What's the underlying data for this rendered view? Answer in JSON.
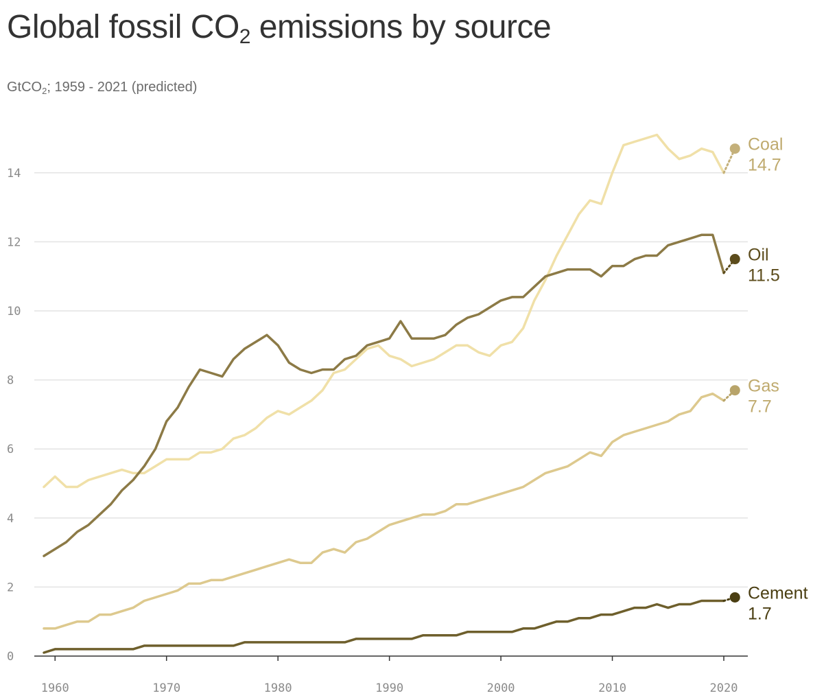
{
  "header": {
    "title_main": "Global fossil CO",
    "title_sub": "2",
    "title_end": " emissions by source",
    "subtitle_pre": "GtCO",
    "subtitle_sub": "2",
    "subtitle_post": "; 1959 - 2021 (predicted)"
  },
  "chart_data": {
    "type": "line",
    "title": "Global fossil CO2 emissions by source",
    "subtitle": "GtCO2; 1959 - 2021 (predicted)",
    "xlabel": "",
    "ylabel": "",
    "xlim": [
      1959,
      2021
    ],
    "ylim": [
      0,
      15
    ],
    "x_ticks": [
      1960,
      1970,
      1980,
      1990,
      2000,
      2010,
      2020
    ],
    "y_ticks": [
      0,
      2,
      4,
      6,
      8,
      10,
      12,
      14
    ],
    "grid": true,
    "x": [
      1959,
      1960,
      1961,
      1962,
      1963,
      1964,
      1965,
      1966,
      1967,
      1968,
      1969,
      1970,
      1971,
      1972,
      1973,
      1974,
      1975,
      1976,
      1977,
      1978,
      1979,
      1980,
      1981,
      1982,
      1983,
      1984,
      1985,
      1986,
      1987,
      1988,
      1989,
      1990,
      1991,
      1992,
      1993,
      1994,
      1995,
      1996,
      1997,
      1998,
      1999,
      2000,
      2001,
      2002,
      2003,
      2004,
      2005,
      2006,
      2007,
      2008,
      2009,
      2010,
      2011,
      2012,
      2013,
      2014,
      2015,
      2016,
      2017,
      2018,
      2019,
      2020
    ],
    "series": [
      {
        "name": "Coal",
        "color": "#f0e0a8",
        "label_color": "#bfaa6e",
        "dot_color": "#c4b07a",
        "values": [
          4.9,
          5.2,
          4.9,
          4.9,
          5.1,
          5.2,
          5.3,
          5.4,
          5.3,
          5.3,
          5.5,
          5.7,
          5.7,
          5.7,
          5.9,
          5.9,
          6.0,
          6.3,
          6.4,
          6.6,
          6.9,
          7.1,
          7.0,
          7.2,
          7.4,
          7.7,
          8.2,
          8.3,
          8.6,
          8.9,
          9.0,
          8.7,
          8.6,
          8.4,
          8.5,
          8.6,
          8.8,
          9.0,
          9.0,
          8.8,
          8.7,
          9.0,
          9.1,
          9.5,
          10.3,
          10.9,
          11.6,
          12.2,
          12.8,
          13.2,
          13.1,
          14.0,
          14.8,
          14.9,
          15.0,
          15.1,
          14.7,
          14.4,
          14.5,
          14.7,
          14.6,
          14.0
        ],
        "predicted": {
          "x": 2021,
          "value": 14.7,
          "label": "14.7"
        }
      },
      {
        "name": "Oil",
        "color": "#8c7a46",
        "label_color": "#5c4c1c",
        "dot_color": "#5c4c1c",
        "values": [
          2.9,
          3.1,
          3.3,
          3.6,
          3.8,
          4.1,
          4.4,
          4.8,
          5.1,
          5.5,
          6.0,
          6.8,
          7.2,
          7.8,
          8.3,
          8.2,
          8.1,
          8.6,
          8.9,
          9.1,
          9.3,
          9.0,
          8.5,
          8.3,
          8.2,
          8.3,
          8.3,
          8.6,
          8.7,
          9.0,
          9.1,
          9.2,
          9.7,
          9.2,
          9.2,
          9.2,
          9.3,
          9.6,
          9.8,
          9.9,
          10.1,
          10.3,
          10.4,
          10.4,
          10.7,
          11.0,
          11.1,
          11.2,
          11.2,
          11.2,
          11.0,
          11.3,
          11.3,
          11.5,
          11.6,
          11.6,
          11.9,
          12.0,
          12.1,
          12.2,
          12.2,
          11.1
        ],
        "predicted": {
          "x": 2021,
          "value": 11.5,
          "label": "11.5"
        }
      },
      {
        "name": "Gas",
        "color": "#ddc98e",
        "label_color": "#bfaa6e",
        "dot_color": "#b8a46a",
        "values": [
          0.8,
          0.8,
          0.9,
          1.0,
          1.0,
          1.2,
          1.2,
          1.3,
          1.4,
          1.6,
          1.7,
          1.8,
          1.9,
          2.1,
          2.1,
          2.2,
          2.2,
          2.3,
          2.4,
          2.5,
          2.6,
          2.7,
          2.8,
          2.7,
          2.7,
          3.0,
          3.1,
          3.0,
          3.3,
          3.4,
          3.6,
          3.8,
          3.9,
          4.0,
          4.1,
          4.1,
          4.2,
          4.4,
          4.4,
          4.5,
          4.6,
          4.7,
          4.8,
          4.9,
          5.1,
          5.3,
          5.4,
          5.5,
          5.7,
          5.9,
          5.8,
          6.2,
          6.4,
          6.5,
          6.6,
          6.7,
          6.8,
          7.0,
          7.1,
          7.5,
          7.6,
          7.4
        ],
        "predicted": {
          "x": 2021,
          "value": 7.7,
          "label": "7.7"
        }
      },
      {
        "name": "Cement",
        "color": "#6e5f2c",
        "label_color": "#4a3e12",
        "dot_color": "#4a3e12",
        "values": [
          0.1,
          0.2,
          0.2,
          0.2,
          0.2,
          0.2,
          0.2,
          0.2,
          0.2,
          0.3,
          0.3,
          0.3,
          0.3,
          0.3,
          0.3,
          0.3,
          0.3,
          0.3,
          0.4,
          0.4,
          0.4,
          0.4,
          0.4,
          0.4,
          0.4,
          0.4,
          0.4,
          0.4,
          0.5,
          0.5,
          0.5,
          0.5,
          0.5,
          0.5,
          0.6,
          0.6,
          0.6,
          0.6,
          0.7,
          0.7,
          0.7,
          0.7,
          0.7,
          0.8,
          0.8,
          0.9,
          1.0,
          1.0,
          1.1,
          1.1,
          1.2,
          1.2,
          1.3,
          1.4,
          1.4,
          1.5,
          1.4,
          1.5,
          1.5,
          1.6,
          1.6,
          1.6
        ],
        "predicted": {
          "x": 2021,
          "value": 1.7,
          "label": "1.7"
        }
      }
    ]
  }
}
